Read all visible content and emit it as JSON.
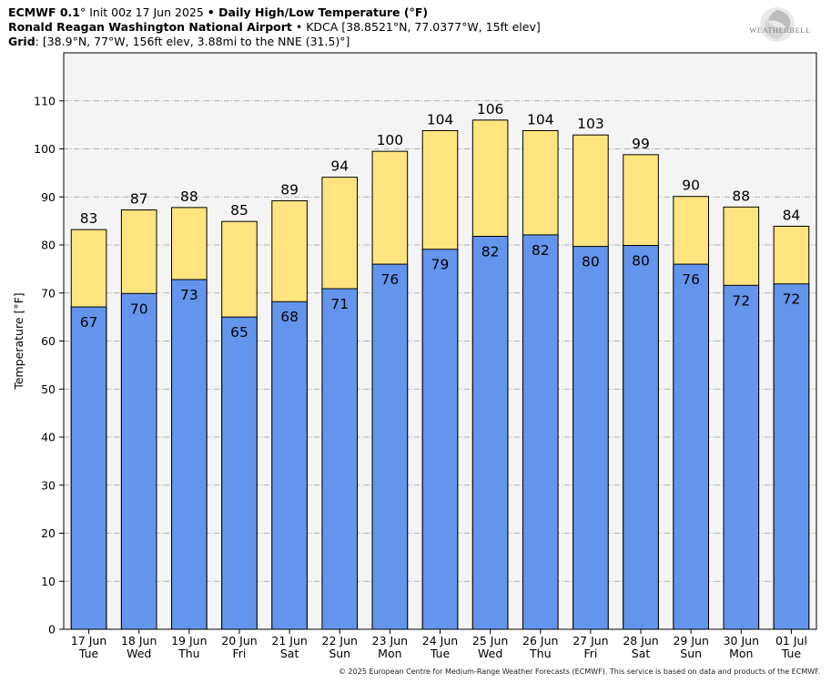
{
  "header": {
    "line1": {
      "model": "ECMWF 0.1",
      "degree": "°",
      "init": " Init 00z 17 Jun 2025 ",
      "bullet": "•",
      "product": " Daily High/Low Temperature (°F)"
    },
    "line2": {
      "station": "Ronald Reagan Washington National Airport",
      "sep": " • ",
      "details": "KDCA [38.8521°N, 77.0377°W, 15ft elev]"
    },
    "line3": {
      "label": "Grid",
      "details": ": [38.9°N, 77°W, 156ft elev, 3.88mi to the NNE (31.5)°]"
    }
  },
  "logo": {
    "text": "WEATHERBELL"
  },
  "footer": "© 2025 European Centre for Medium-Range Weather Forecasts (ECMWF). This service is based on data and products of the ECMWF.",
  "chart_data": {
    "type": "bar",
    "ylabel": "Temperature [°F]",
    "ylim": [
      0,
      120
    ],
    "yticks": [
      0,
      10,
      20,
      30,
      40,
      50,
      60,
      70,
      80,
      90,
      100,
      110
    ],
    "grid": true,
    "categories": [
      {
        "date": "17 Jun",
        "day": "Tue"
      },
      {
        "date": "18 Jun",
        "day": "Wed"
      },
      {
        "date": "19 Jun",
        "day": "Thu"
      },
      {
        "date": "20 Jun",
        "day": "Fri"
      },
      {
        "date": "21 Jun",
        "day": "Sat"
      },
      {
        "date": "22 Jun",
        "day": "Sun"
      },
      {
        "date": "23 Jun",
        "day": "Mon"
      },
      {
        "date": "24 Jun",
        "day": "Tue"
      },
      {
        "date": "25 Jun",
        "day": "Wed"
      },
      {
        "date": "26 Jun",
        "day": "Thu"
      },
      {
        "date": "27 Jun",
        "day": "Fri"
      },
      {
        "date": "28 Jun",
        "day": "Sat"
      },
      {
        "date": "29 Jun",
        "day": "Sun"
      },
      {
        "date": "30 Jun",
        "day": "Mon"
      },
      {
        "date": "01 Jul",
        "day": "Tue"
      }
    ],
    "series": [
      {
        "color": "#ffe480",
        "values": [
          83.2,
          87.3,
          87.8,
          84.9,
          89.2,
          94.1,
          99.5,
          103.8,
          106.0,
          103.8,
          102.9,
          98.8,
          90.1,
          87.9,
          83.9
        ],
        "labels": [
          "83",
          "87",
          "88",
          "85",
          "89",
          "94",
          "100",
          "104",
          "106",
          "104",
          "103",
          "99",
          "90",
          "88",
          "84"
        ]
      },
      {
        "color": "#6495ed",
        "values": [
          67.1,
          69.9,
          72.8,
          65.0,
          68.2,
          70.9,
          76.0,
          79.1,
          81.8,
          82.1,
          79.7,
          79.9,
          76.0,
          71.6,
          71.9
        ],
        "labels": [
          "67",
          "70",
          "73",
          "65",
          "68",
          "71",
          "76",
          "79",
          "82",
          "82",
          "80",
          "80",
          "76",
          "72",
          "72"
        ]
      }
    ]
  }
}
